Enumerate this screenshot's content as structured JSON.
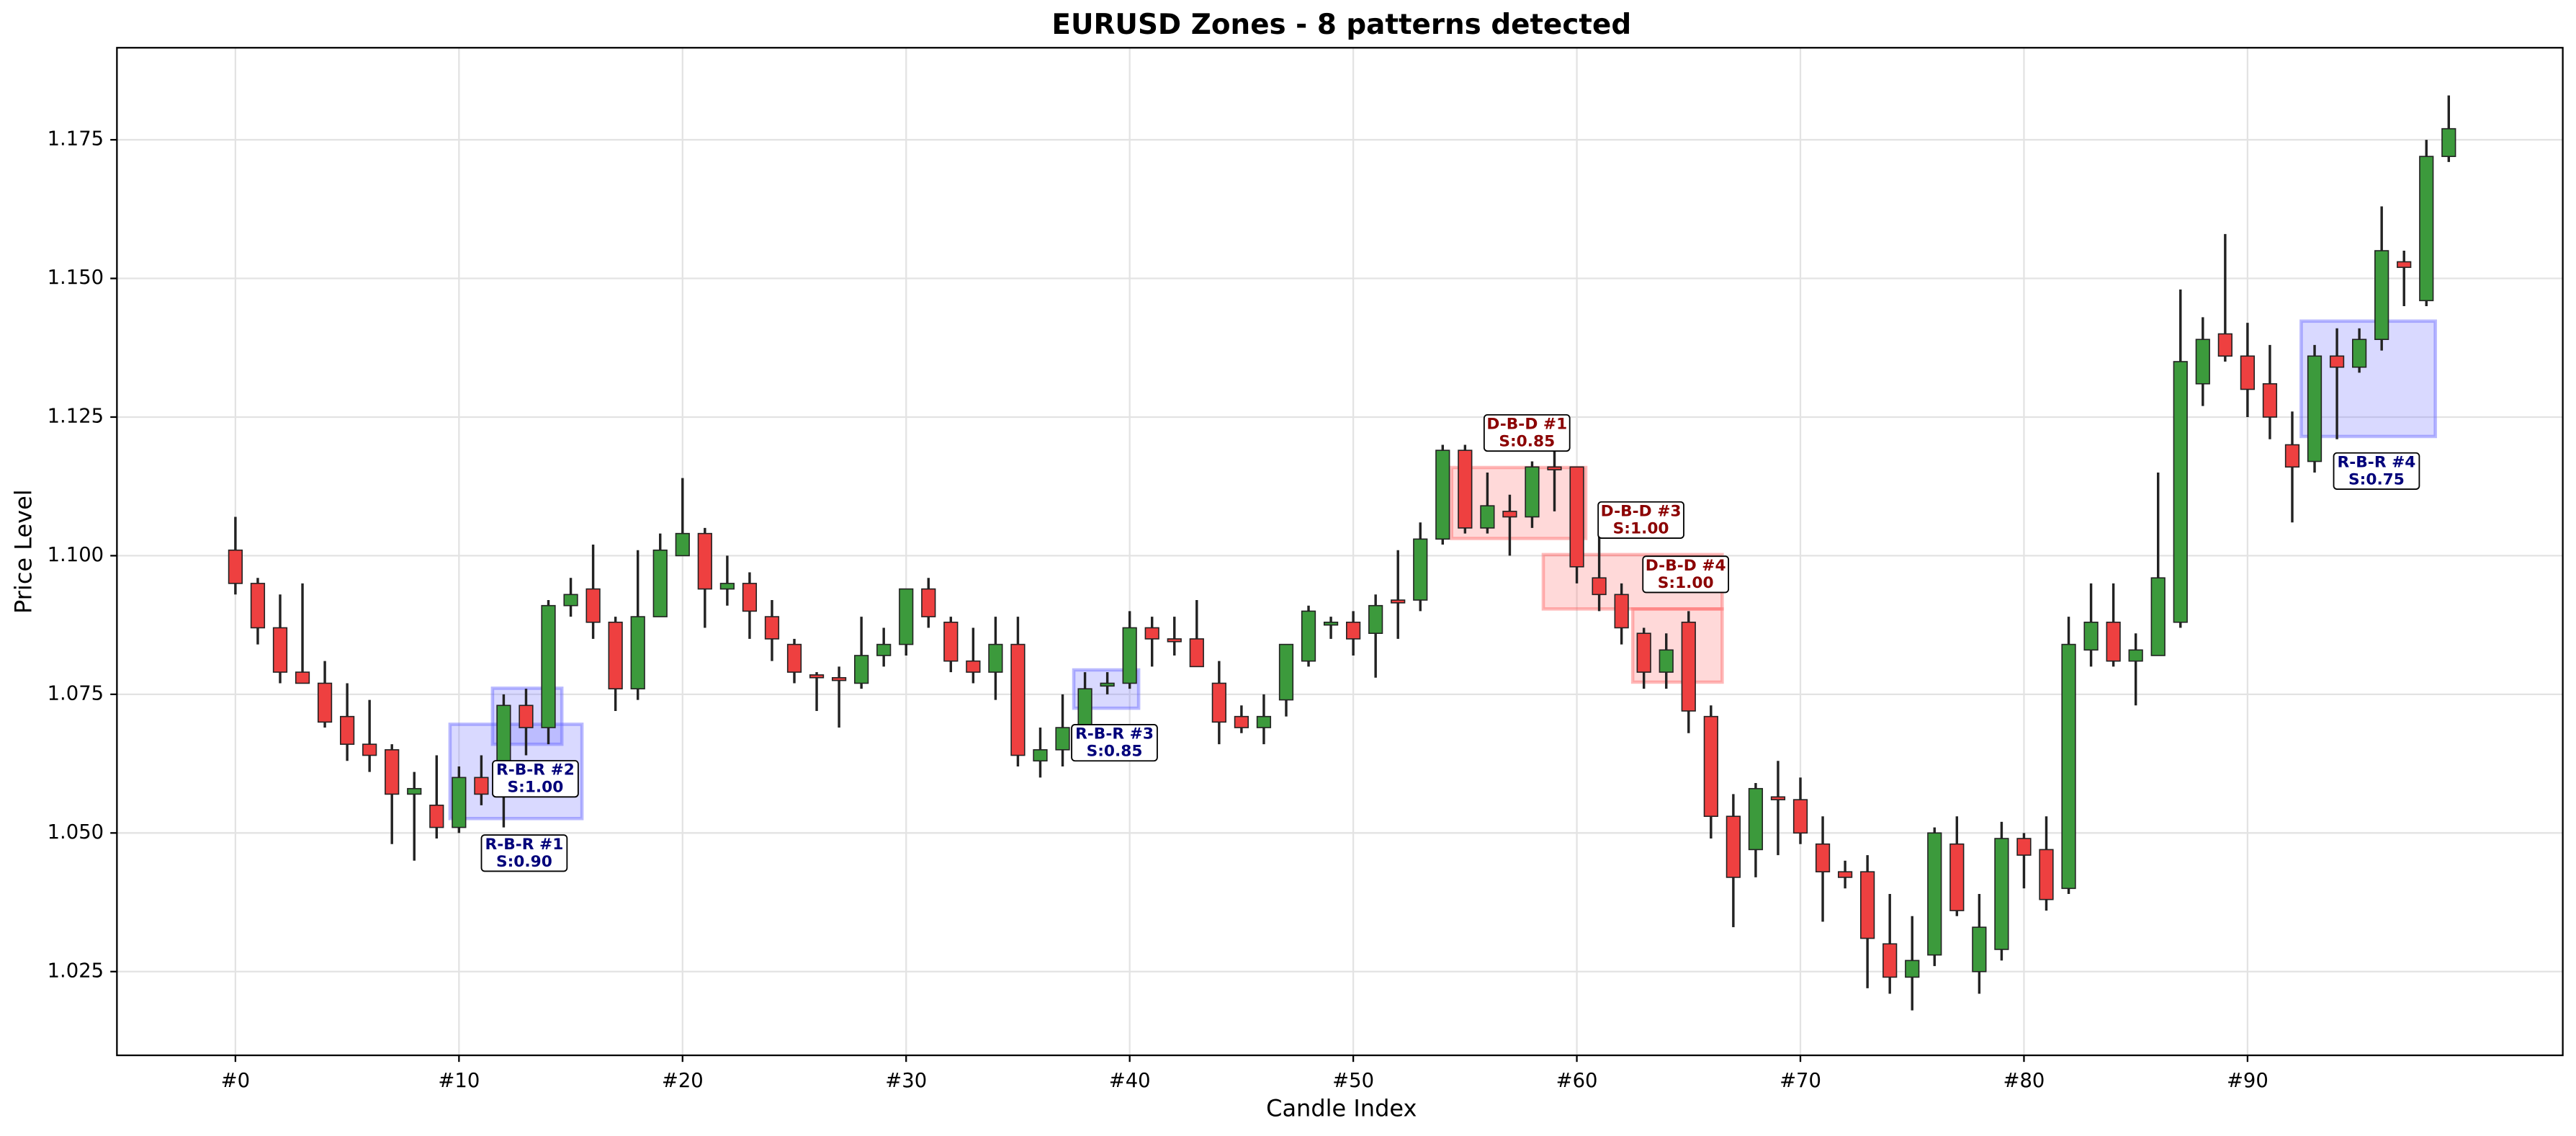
{
  "chart_data": {
    "type": "candlestick",
    "title": "EURUSD Zones - 8 patterns detected",
    "xlabel": "Candle Index",
    "ylabel": "Price Level",
    "x": [
      0,
      1,
      2,
      3,
      4,
      5,
      6,
      7,
      8,
      9,
      10,
      11,
      12,
      13,
      14,
      15,
      16,
      17,
      18,
      19,
      20,
      21,
      22,
      23,
      24,
      25,
      26,
      27,
      28,
      29,
      30,
      31,
      32,
      33,
      34,
      35,
      36,
      37,
      38,
      39,
      40,
      41,
      42,
      43,
      44,
      45,
      46,
      47,
      48,
      49,
      50,
      51,
      52,
      53,
      54,
      55,
      56,
      57,
      58,
      59,
      60,
      61,
      62,
      63,
      64,
      65,
      66,
      67,
      68,
      69,
      70,
      71,
      72,
      73,
      74,
      75,
      76,
      77,
      78,
      79,
      80,
      81,
      82,
      83,
      84,
      85,
      86,
      87,
      88,
      89,
      90,
      91,
      92,
      93,
      94,
      95,
      96,
      97,
      98,
      99
    ],
    "open": [
      1.101,
      1.095,
      1.087,
      1.079,
      1.077,
      1.071,
      1.066,
      1.065,
      1.057,
      1.055,
      1.051,
      1.06,
      1.062,
      1.073,
      1.069,
      1.091,
      1.094,
      1.088,
      1.076,
      1.089,
      1.1,
      1.104,
      1.094,
      1.095,
      1.089,
      1.084,
      1.0785,
      1.078,
      1.077,
      1.082,
      1.084,
      1.094,
      1.088,
      1.081,
      1.079,
      1.084,
      1.063,
      1.065,
      1.069,
      1.0765,
      1.077,
      1.087,
      1.085,
      1.085,
      1.077,
      1.071,
      1.069,
      1.074,
      1.081,
      1.0875,
      1.088,
      1.086,
      1.092,
      1.092,
      1.103,
      1.119,
      1.105,
      1.108,
      1.107,
      1.116,
      1.116,
      1.096,
      1.093,
      1.086,
      1.079,
      1.088,
      1.071,
      1.053,
      1.047,
      1.0565,
      1.056,
      1.048,
      1.043,
      1.043,
      1.03,
      1.024,
      1.028,
      1.048,
      1.025,
      1.029,
      1.049,
      1.047,
      1.04,
      1.083,
      1.088,
      1.081,
      1.082,
      1.088,
      1.131,
      1.14,
      1.136,
      1.131,
      1.12,
      1.117,
      1.136,
      1.134,
      1.139,
      1.153,
      1.146,
      1.172
    ],
    "high": [
      1.107,
      1.096,
      1.093,
      1.095,
      1.081,
      1.077,
      1.074,
      1.066,
      1.061,
      1.064,
      1.062,
      1.064,
      1.075,
      1.076,
      1.092,
      1.096,
      1.102,
      1.089,
      1.101,
      1.104,
      1.114,
      1.105,
      1.1,
      1.097,
      1.092,
      1.085,
      1.079,
      1.08,
      1.089,
      1.087,
      1.094,
      1.096,
      1.089,
      1.087,
      1.089,
      1.089,
      1.069,
      1.075,
      1.079,
      1.079,
      1.09,
      1.089,
      1.089,
      1.092,
      1.081,
      1.073,
      1.075,
      1.084,
      1.091,
      1.089,
      1.09,
      1.093,
      1.101,
      1.106,
      1.12,
      1.12,
      1.115,
      1.111,
      1.117,
      1.121,
      1.116,
      1.104,
      1.095,
      1.087,
      1.086,
      1.09,
      1.073,
      1.057,
      1.059,
      1.063,
      1.06,
      1.053,
      1.045,
      1.046,
      1.039,
      1.035,
      1.051,
      1.053,
      1.039,
      1.052,
      1.05,
      1.053,
      1.089,
      1.095,
      1.095,
      1.086,
      1.115,
      1.148,
      1.143,
      1.158,
      1.142,
      1.138,
      1.126,
      1.138,
      1.141,
      1.141,
      1.163,
      1.155,
      1.175,
      1.183
    ],
    "low": [
      1.093,
      1.084,
      1.077,
      1.077,
      1.069,
      1.063,
      1.061,
      1.048,
      1.045,
      1.049,
      1.05,
      1.055,
      1.051,
      1.064,
      1.066,
      1.089,
      1.085,
      1.072,
      1.074,
      1.089,
      1.1,
      1.087,
      1.091,
      1.085,
      1.081,
      1.077,
      1.072,
      1.069,
      1.076,
      1.08,
      1.082,
      1.087,
      1.079,
      1.077,
      1.074,
      1.062,
      1.06,
      1.062,
      1.066,
      1.075,
      1.076,
      1.08,
      1.082,
      1.08,
      1.066,
      1.068,
      1.066,
      1.071,
      1.08,
      1.085,
      1.082,
      1.078,
      1.085,
      1.09,
      1.102,
      1.104,
      1.104,
      1.1,
      1.105,
      1.108,
      1.095,
      1.09,
      1.084,
      1.076,
      1.076,
      1.068,
      1.049,
      1.033,
      1.042,
      1.046,
      1.048,
      1.034,
      1.04,
      1.022,
      1.021,
      1.018,
      1.026,
      1.035,
      1.021,
      1.027,
      1.04,
      1.036,
      1.039,
      1.08,
      1.08,
      1.073,
      1.082,
      1.087,
      1.127,
      1.135,
      1.125,
      1.121,
      1.106,
      1.115,
      1.121,
      1.133,
      1.137,
      1.145,
      1.145,
      1.171
    ],
    "close": [
      1.095,
      1.087,
      1.079,
      1.077,
      1.07,
      1.066,
      1.064,
      1.057,
      1.058,
      1.051,
      1.06,
      1.057,
      1.073,
      1.069,
      1.091,
      1.093,
      1.088,
      1.076,
      1.089,
      1.101,
      1.104,
      1.094,
      1.095,
      1.09,
      1.085,
      1.079,
      1.078,
      1.0775,
      1.082,
      1.084,
      1.094,
      1.089,
      1.081,
      1.079,
      1.084,
      1.064,
      1.065,
      1.069,
      1.076,
      1.077,
      1.087,
      1.085,
      1.0845,
      1.08,
      1.07,
      1.069,
      1.071,
      1.084,
      1.09,
      1.088,
      1.085,
      1.091,
      1.0915,
      1.103,
      1.119,
      1.105,
      1.109,
      1.107,
      1.116,
      1.1155,
      1.098,
      1.093,
      1.087,
      1.079,
      1.083,
      1.072,
      1.053,
      1.042,
      1.058,
      1.056,
      1.05,
      1.043,
      1.042,
      1.031,
      1.024,
      1.027,
      1.05,
      1.036,
      1.033,
      1.049,
      1.046,
      1.038,
      1.084,
      1.088,
      1.081,
      1.083,
      1.096,
      1.135,
      1.139,
      1.136,
      1.13,
      1.125,
      1.116,
      1.136,
      1.134,
      1.139,
      1.155,
      1.152,
      1.172,
      1.177
    ],
    "up_color": "#3c9a3c",
    "down_color": "#ee4040",
    "wick_color": "#222222",
    "xlim": [
      -5.3,
      104.1
    ],
    "ylim": [
      1.0099,
      1.1916
    ],
    "xticks": [
      {
        "value": 0,
        "label": "#0"
      },
      {
        "value": 10,
        "label": "#10"
      },
      {
        "value": 20,
        "label": "#20"
      },
      {
        "value": 30,
        "label": "#30"
      },
      {
        "value": 40,
        "label": "#40"
      },
      {
        "value": 50,
        "label": "#50"
      },
      {
        "value": 60,
        "label": "#60"
      },
      {
        "value": 70,
        "label": "#70"
      },
      {
        "value": 80,
        "label": "#80"
      },
      {
        "value": 90,
        "label": "#90"
      }
    ],
    "yticks": [
      1.025,
      {
        "value": 1.05,
        "label": "1.050"
      },
      1.075,
      {
        "value": 1.1,
        "label": "1.100"
      },
      1.125,
      {
        "value": 1.15,
        "label": "1.150"
      },
      1.175
    ],
    "grid": true,
    "zone_groups": [
      {
        "color": "#6666ff",
        "text_color": "#00007a",
        "zones": [
          {
            "name": "R-B-R #1",
            "score": "S:0.90",
            "x0": 9.6,
            "x1": 15.5,
            "y0": 1.0526,
            "y1": 1.0696
          },
          {
            "name": "R-B-R #2",
            "score": "S:1.00",
            "x0": 11.5,
            "x1": 14.6,
            "y0": 1.066,
            "y1": 1.0761
          },
          {
            "name": "R-B-R #3",
            "score": "S:0.85",
            "x0": 37.5,
            "x1": 40.4,
            "y0": 1.0725,
            "y1": 1.0794
          },
          {
            "name": "R-B-R #4",
            "score": "S:0.75",
            "x0": 92.4,
            "x1": 98.4,
            "y0": 1.1215,
            "y1": 1.1423
          }
        ]
      },
      {
        "color": "#ff6666",
        "text_color": "#8b0000",
        "zones": [
          {
            "name": "D-B-D #1",
            "score": "S:0.85",
            "x0": 54.4,
            "x1": 60.4,
            "y0": 1.1031,
            "y1": 1.1159
          },
          {
            "name": "D-B-D #3",
            "score": "S:1.00",
            "x0": 58.5,
            "x1": 66.5,
            "y0": 1.0904,
            "y1": 1.1002
          },
          {
            "name": "D-B-D #4",
            "score": "S:1.00",
            "x0": 62.5,
            "x1": 66.5,
            "y0": 1.0772,
            "y1": 1.0904
          }
        ]
      }
    ]
  }
}
